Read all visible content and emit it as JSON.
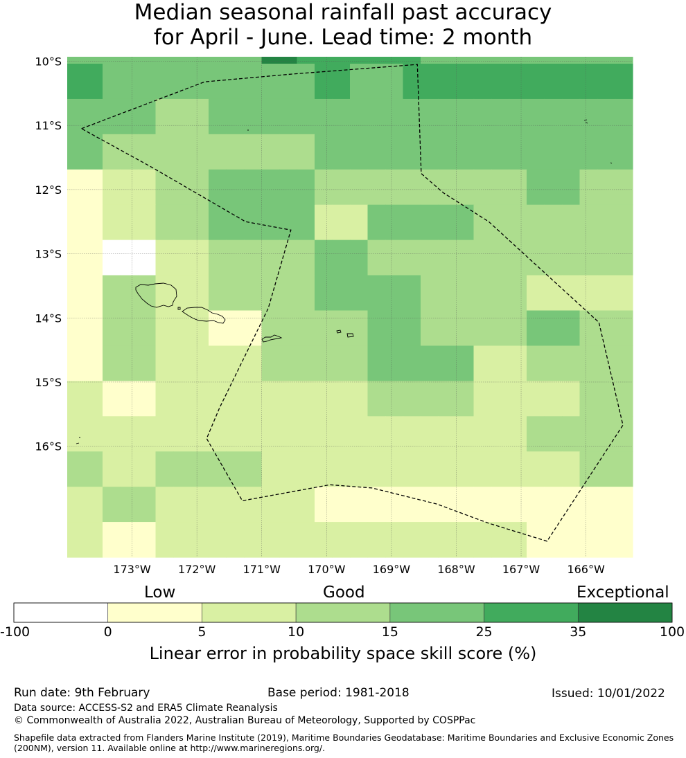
{
  "title_line1": "Median seasonal rainfall past accuracy",
  "title_line2": "for April - June. Lead time: 2 month",
  "lat_labels": [
    "10°S",
    "11°S",
    "12°S",
    "13°S",
    "14°S",
    "15°S",
    "16°S"
  ],
  "lon_labels": [
    "173°W",
    "172°W",
    "171°W",
    "170°W",
    "169°W",
    "168°W",
    "167°W",
    "166°W"
  ],
  "colorbar": {
    "categories": [
      "Low",
      "Good",
      "Exceptional"
    ],
    "ticks": [
      "-100",
      "0",
      "5",
      "10",
      "15",
      "25",
      "35",
      "100"
    ],
    "colors": [
      "#ffffff",
      "#ffffcc",
      "#d9f0a3",
      "#addd8e",
      "#78c679",
      "#41ab5d",
      "#238443"
    ],
    "label": "Linear error in probability space skill score (%)"
  },
  "skill_grid": [
    [
      4,
      4,
      4,
      4,
      4,
      4,
      4,
      4,
      4,
      4,
      4,
      6,
      6,
      5,
      5,
      5,
      5,
      5,
      5,
      5,
      4,
      4,
      4,
      4,
      4,
      4,
      4,
      4,
      4,
      4,
      4,
      4
    ],
    [
      5,
      5,
      4,
      4,
      4,
      4,
      4,
      4,
      4,
      4,
      4,
      4,
      4,
      4,
      5,
      5,
      4,
      4,
      4,
      5,
      5,
      5,
      5,
      5,
      5,
      5,
      5,
      5,
      5,
      5,
      5,
      5
    ],
    [
      4,
      4,
      4,
      4,
      4,
      3,
      3,
      3,
      4,
      4,
      4,
      4,
      4,
      4,
      4,
      4,
      4,
      4,
      4,
      4,
      4,
      4,
      4,
      4,
      4,
      4,
      4,
      4,
      4,
      4,
      4,
      4
    ],
    [
      4,
      4,
      3,
      3,
      3,
      3,
      3,
      3,
      3,
      3,
      3,
      3,
      3,
      3,
      4,
      4,
      4,
      4,
      4,
      4,
      4,
      4,
      4,
      4,
      4,
      4,
      4,
      4,
      4,
      4,
      4,
      4
    ],
    [
      1,
      1,
      2,
      2,
      2,
      3,
      3,
      3,
      4,
      4,
      4,
      4,
      4,
      4,
      3,
      3,
      3,
      3,
      3,
      3,
      3,
      3,
      3,
      3,
      3,
      3,
      4,
      4,
      4,
      3,
      3,
      3
    ],
    [
      1,
      1,
      2,
      2,
      2,
      3,
      3,
      3,
      4,
      4,
      4,
      4,
      4,
      4,
      2,
      2,
      2,
      4,
      4,
      4,
      4,
      4,
      4,
      3,
      3,
      3,
      3,
      3,
      3,
      3,
      3,
      3
    ],
    [
      1,
      1,
      0,
      0,
      0,
      2,
      2,
      2,
      3,
      3,
      3,
      3,
      3,
      3,
      4,
      4,
      4,
      3,
      3,
      3,
      3,
      3,
      3,
      3,
      3,
      3,
      3,
      3,
      3,
      3,
      3,
      3
    ],
    [
      1,
      1,
      3,
      3,
      3,
      2,
      2,
      2,
      3,
      3,
      3,
      3,
      3,
      3,
      4,
      4,
      4,
      4,
      4,
      4,
      3,
      3,
      3,
      3,
      3,
      3,
      2,
      2,
      2,
      2,
      2,
      2
    ],
    [
      1,
      1,
      3,
      3,
      3,
      2,
      2,
      2,
      1,
      1,
      1,
      3,
      3,
      3,
      3,
      3,
      3,
      4,
      4,
      4,
      3,
      3,
      3,
      3,
      3,
      3,
      4,
      4,
      4,
      3,
      3,
      3
    ],
    [
      1,
      1,
      3,
      3,
      3,
      2,
      2,
      2,
      2,
      2,
      2,
      3,
      3,
      3,
      3,
      3,
      3,
      4,
      4,
      4,
      4,
      4,
      4,
      2,
      2,
      2,
      3,
      3,
      3,
      3,
      3,
      3
    ],
    [
      2,
      2,
      1,
      1,
      1,
      2,
      2,
      2,
      2,
      2,
      2,
      2,
      2,
      2,
      2,
      2,
      2,
      3,
      3,
      3,
      3,
      3,
      3,
      2,
      2,
      2,
      2,
      2,
      2,
      3,
      3,
      3
    ],
    [
      2,
      2,
      2,
      2,
      2,
      2,
      2,
      2,
      2,
      2,
      2,
      2,
      2,
      2,
      2,
      2,
      2,
      2,
      2,
      2,
      2,
      2,
      2,
      2,
      2,
      2,
      3,
      3,
      3,
      3,
      3,
      3
    ],
    [
      3,
      3,
      2,
      2,
      2,
      3,
      3,
      3,
      3,
      3,
      3,
      2,
      2,
      2,
      2,
      2,
      2,
      2,
      2,
      2,
      2,
      2,
      2,
      2,
      2,
      2,
      2,
      2,
      2,
      3,
      3,
      3
    ],
    [
      2,
      2,
      3,
      3,
      3,
      2,
      2,
      2,
      2,
      2,
      2,
      2,
      2,
      2,
      1,
      1,
      1,
      1,
      1,
      1,
      1,
      1,
      1,
      1,
      1,
      1,
      1,
      1,
      1,
      1,
      1,
      1
    ],
    [
      2,
      2,
      1,
      1,
      1,
      2,
      2,
      2,
      2,
      2,
      2,
      2,
      2,
      2,
      2,
      2,
      2,
      2,
      2,
      2,
      2,
      2,
      2,
      2,
      2,
      2,
      1,
      1,
      1,
      1,
      1,
      1
    ]
  ],
  "eez_boundary_lonlat": [
    [
      -173.78,
      -11.05
    ],
    [
      -171.88,
      -10.32
    ],
    [
      -170.53,
      -10.2
    ],
    [
      -168.6,
      -10.05
    ],
    [
      -168.54,
      -11.75
    ],
    [
      -168.2,
      -12.05
    ],
    [
      -167.5,
      -12.5
    ],
    [
      -165.8,
      -14.07
    ],
    [
      -165.43,
      -15.67
    ],
    [
      -166.6,
      -17.48
    ],
    [
      -167.5,
      -17.2
    ],
    [
      -168.3,
      -16.9
    ],
    [
      -169.3,
      -16.65
    ],
    [
      -169.95,
      -16.6
    ],
    [
      -171.3,
      -16.85
    ],
    [
      -171.85,
      -15.88
    ],
    [
      -171.65,
      -15.4
    ],
    [
      -170.9,
      -13.85
    ],
    [
      -170.55,
      -12.63
    ],
    [
      -171.25,
      -12.5
    ],
    [
      -172.7,
      -11.65
    ],
    [
      -173.78,
      -11.05
    ]
  ],
  "footer": {
    "run_date": "Run date: 9th February",
    "base_period": "Base period: 1981-2018",
    "issued": "Issued: 10/01/2022",
    "data_source": "Data source: ACCESS-S2 and ERA5 Climate Reanalysis",
    "copyright": "© Commonwealth of Australia 2022, Australian Bureau of Meteorology, Supported by COSPPac",
    "shapefile_line1": "Shapefile data extracted from Flanders Marine Institute (2019), Maritime Boundaries Geodatabase: Maritime Boundaries and Exclusive Economic Zones",
    "shapefile_line2": "(200NM), version 11. Available online at http://www.marineregions.org/."
  }
}
